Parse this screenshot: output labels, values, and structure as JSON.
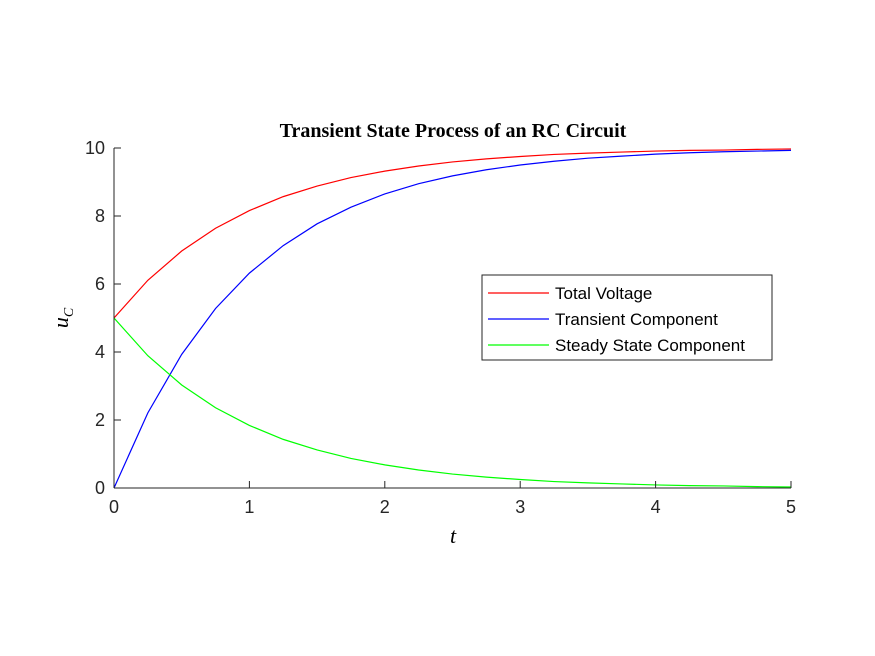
{
  "chart_data": {
    "type": "line",
    "title": "Transient State Process of an RC Circuit",
    "xlabel": "t",
    "ylabel": {
      "main": "u",
      "sub": "C"
    },
    "xlim": [
      0,
      5
    ],
    "ylim": [
      0,
      10
    ],
    "xticks": [
      "0",
      "1",
      "2",
      "3",
      "4",
      "5"
    ],
    "yticks": [
      "0",
      "2",
      "4",
      "6",
      "8",
      "10"
    ],
    "grid": false,
    "legend_position": "right",
    "x": [
      0,
      0.25,
      0.5,
      0.75,
      1,
      1.25,
      1.5,
      1.75,
      2,
      2.25,
      2.5,
      2.75,
      3,
      3.25,
      3.5,
      3.75,
      4,
      4.25,
      4.5,
      4.75,
      5
    ],
    "series": [
      {
        "name": "Total Voltage",
        "color": "#ff0000",
        "values": [
          5.0,
          6.11,
          6.97,
          7.64,
          8.16,
          8.57,
          8.88,
          9.13,
          9.32,
          9.47,
          9.59,
          9.68,
          9.75,
          9.81,
          9.85,
          9.88,
          9.91,
          9.93,
          9.94,
          9.96,
          9.97
        ]
      },
      {
        "name": "Transient Component",
        "color": "#0000ff",
        "values": [
          0.0,
          2.21,
          3.93,
          5.28,
          6.32,
          7.13,
          7.77,
          8.26,
          8.65,
          8.95,
          9.18,
          9.36,
          9.5,
          9.61,
          9.7,
          9.76,
          9.82,
          9.86,
          9.89,
          9.91,
          9.93
        ]
      },
      {
        "name": "Steady State Component",
        "color": "#00ff00",
        "values": [
          5.0,
          3.89,
          3.03,
          2.36,
          1.84,
          1.43,
          1.12,
          0.87,
          0.68,
          0.53,
          0.41,
          0.32,
          0.25,
          0.19,
          0.15,
          0.12,
          0.09,
          0.07,
          0.06,
          0.04,
          0.03
        ]
      }
    ]
  }
}
